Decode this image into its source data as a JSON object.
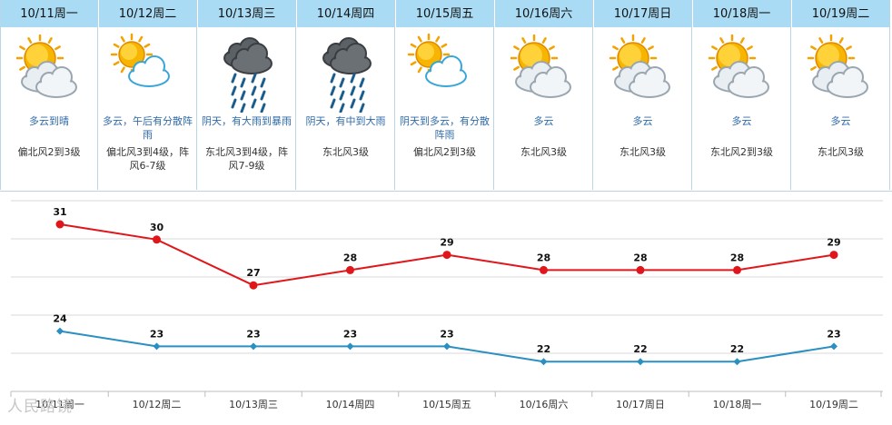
{
  "forecast": {
    "days": [
      {
        "label": "10/11周一",
        "icon": "sun-cloud-icon",
        "desc": "多云到晴",
        "wind": "偏北风2到3级"
      },
      {
        "label": "10/12周二",
        "icon": "sun-cloud-light-icon",
        "desc": "多云，午后有分散阵雨",
        "wind": "偏北风3到4级，阵风6-7级"
      },
      {
        "label": "10/13周三",
        "icon": "heavy-rain-icon",
        "desc": "阴天，有大雨到暴雨",
        "wind": "东北风3到4级，阵风7-9级"
      },
      {
        "label": "10/14周四",
        "icon": "heavy-rain-icon",
        "desc": "阴天，有中到大雨",
        "wind": "东北风3级"
      },
      {
        "label": "10/15周五",
        "icon": "sun-cloud-light-icon",
        "desc": "阴天到多云，有分散阵雨",
        "wind": "偏北风2到3级"
      },
      {
        "label": "10/16周六",
        "icon": "sun-cloud-icon",
        "desc": "多云",
        "wind": "东北风3级"
      },
      {
        "label": "10/17周日",
        "icon": "sun-cloud-icon",
        "desc": "多云",
        "wind": "东北风3级"
      },
      {
        "label": "10/18周一",
        "icon": "sun-cloud-icon",
        "desc": "多云",
        "wind": "东北风2到3级"
      },
      {
        "label": "10/19周二",
        "icon": "sun-cloud-icon",
        "desc": "多云",
        "wind": "东北风3级"
      }
    ]
  },
  "chart_data": {
    "type": "line",
    "categories": [
      "10/11周一",
      "10/12周二",
      "10/13周三",
      "10/14周四",
      "10/15周五",
      "10/16周六",
      "10/17周日",
      "10/18周一",
      "10/19周二"
    ],
    "series": [
      {
        "values": [
          31,
          30,
          27,
          28,
          29,
          28,
          28,
          28,
          29
        ],
        "color": "#e0161b"
      },
      {
        "values": [
          24,
          23,
          23,
          23,
          23,
          22,
          22,
          22,
          23
        ],
        "color": "#2a8fc1"
      }
    ],
    "grid": true
  },
  "watermark": "人民路镜"
}
